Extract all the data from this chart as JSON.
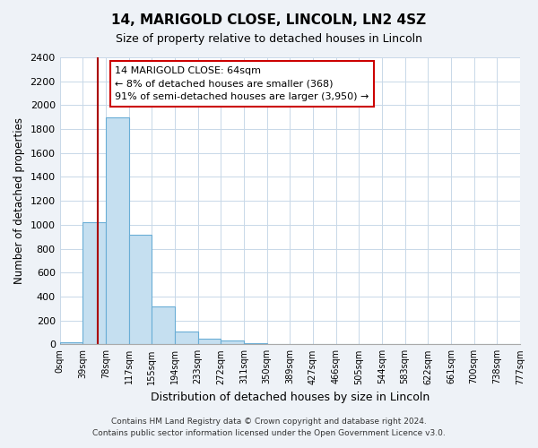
{
  "title": "14, MARIGOLD CLOSE, LINCOLN, LN2 4SZ",
  "subtitle": "Size of property relative to detached houses in Lincoln",
  "xlabel": "Distribution of detached houses by size in Lincoln",
  "ylabel": "Number of detached properties",
  "bar_color": "#c5dff0",
  "bar_edge_color": "#6aaed6",
  "bin_labels": [
    "0sqm",
    "39sqm",
    "78sqm",
    "117sqm",
    "155sqm",
    "194sqm",
    "233sqm",
    "272sqm",
    "311sqm",
    "350sqm",
    "389sqm",
    "427sqm",
    "466sqm",
    "505sqm",
    "544sqm",
    "583sqm",
    "622sqm",
    "661sqm",
    "700sqm",
    "738sqm",
    "777sqm"
  ],
  "bar_heights": [
    20,
    1020,
    1900,
    920,
    320,
    105,
    50,
    30,
    10,
    2,
    0,
    0,
    0,
    0,
    0,
    0,
    0,
    0,
    0,
    0
  ],
  "annotation_title": "14 MARIGOLD CLOSE: 64sqm",
  "annotation_line1": "← 8% of detached houses are smaller (368)",
  "annotation_line2": "91% of semi-detached houses are larger (3,950) →",
  "annotation_box_color": "#ffffff",
  "annotation_border_color": "#cc0000",
  "property_line_color": "#aa0000",
  "ylim": [
    0,
    2400
  ],
  "yticks": [
    0,
    200,
    400,
    600,
    800,
    1000,
    1200,
    1400,
    1600,
    1800,
    2000,
    2200,
    2400
  ],
  "footer1": "Contains HM Land Registry data © Crown copyright and database right 2024.",
  "footer2": "Contains public sector information licensed under the Open Government Licence v3.0.",
  "background_color": "#eef2f7",
  "plot_background": "#ffffff",
  "grid_color": "#c8d8e8"
}
